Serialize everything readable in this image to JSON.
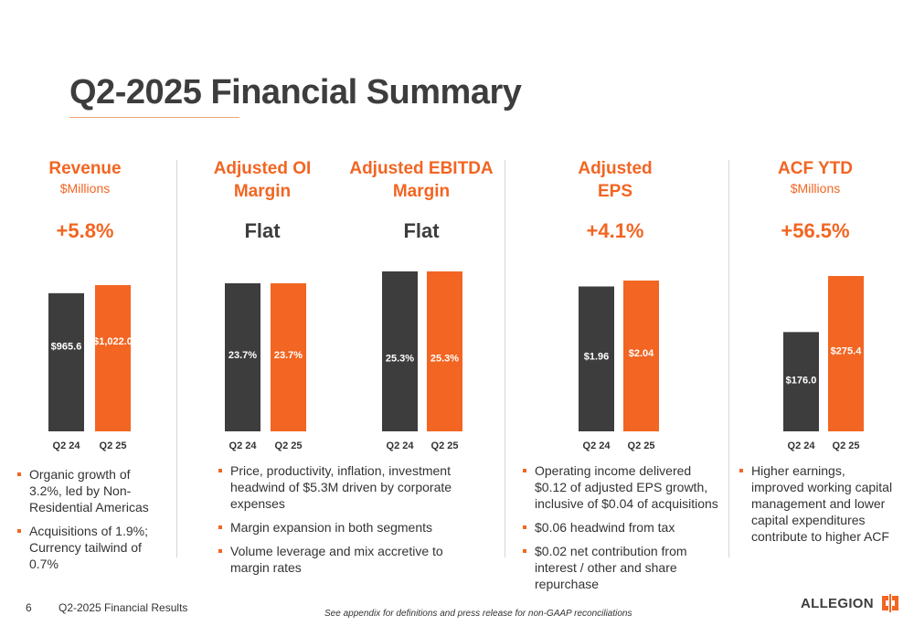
{
  "slide": {
    "title": "Q2-2025 Financial Summary",
    "page_number": "6",
    "footer_label": "Q2-2025 Financial Results",
    "footnote": "See appendix for definitions and press release for non-GAAP reconciliations",
    "logo_text": "ALLEGION"
  },
  "colors": {
    "accent": "#f26522",
    "dark_bar": "#3d3d3d",
    "text": "#333333"
  },
  "panels": [
    {
      "title": "Revenue",
      "subtitle": "$Millions",
      "change": "+5.8%",
      "bullets": [
        "Organic growth of 3.2%, led by Non-Residential Americas",
        "Acquisitions of 1.9%; Currency tailwind of 0.7%"
      ]
    },
    {
      "title": "Adjusted OI Margin",
      "change": "Flat"
    },
    {
      "title": "Adjusted EBITDA Margin",
      "change": "Flat"
    },
    {
      "title": "Adjusted EPS",
      "change": "+4.1%",
      "bullets": [
        "Operating income delivered $0.12 of adjusted EPS growth, inclusive of $0.04 of acquisitions",
        "$0.06 headwind from tax",
        "$0.02 net contribution from interest / other and share repurchase"
      ]
    },
    {
      "title": "ACF YTD",
      "subtitle": "$Millions",
      "change": "+56.5%",
      "bullets": [
        "Higher earnings, improved working capital management and lower capital expenditures contribute to higher ACF"
      ]
    }
  ],
  "margin_bullets": [
    "Price, productivity, inflation, investment headwind of $5.3M driven by corporate expenses",
    "Margin expansion in both segments",
    "Volume leverage and mix accretive to margin rates"
  ],
  "chart_data": [
    {
      "type": "bar",
      "title": "Revenue",
      "categories": [
        "Q2 24",
        "Q2 25"
      ],
      "values": [
        965.6,
        1022.0
      ],
      "labels": [
        "$965.6",
        "$1,022.0"
      ]
    },
    {
      "type": "bar",
      "title": "Adjusted OI Margin",
      "categories": [
        "Q2 24",
        "Q2 25"
      ],
      "values": [
        23.7,
        23.7
      ],
      "labels": [
        "23.7%",
        "23.7%"
      ]
    },
    {
      "type": "bar",
      "title": "Adjusted EBITDA Margin",
      "categories": [
        "Q2 24",
        "Q2 25"
      ],
      "values": [
        25.3,
        25.3
      ],
      "labels": [
        "25.3%",
        "25.3%"
      ]
    },
    {
      "type": "bar",
      "title": "Adjusted EPS",
      "categories": [
        "Q2 24",
        "Q2 25"
      ],
      "values": [
        1.96,
        2.04
      ],
      "labels": [
        "$1.96",
        "$2.04"
      ]
    },
    {
      "type": "bar",
      "title": "ACF YTD",
      "categories": [
        "Q2 24",
        "Q2 25"
      ],
      "values": [
        176.0,
        275.4
      ],
      "labels": [
        "$176.0",
        "$275.4"
      ]
    }
  ]
}
